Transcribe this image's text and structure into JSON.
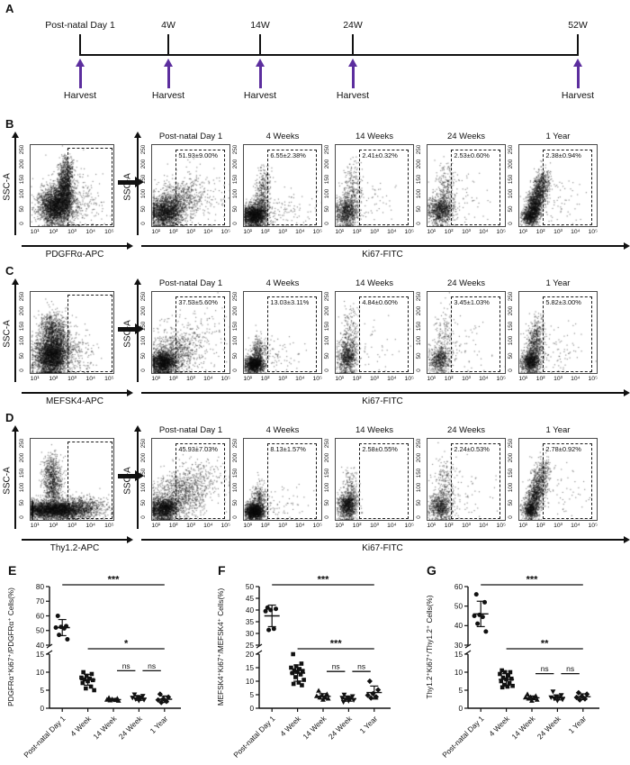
{
  "panelA": {
    "label": "A",
    "arrow_color": "#5c2e9e",
    "entries": [
      {
        "time": "Post-natal Day 1",
        "harvest": "Harvest"
      },
      {
        "time": "4W",
        "harvest": "Harvest"
      },
      {
        "time": "14W",
        "harvest": "Harvest"
      },
      {
        "time": "24W",
        "harvest": "Harvest"
      },
      {
        "time": "52W",
        "harvest": "Harvest"
      }
    ]
  },
  "flow_common": {
    "ylabel": "SSC-A",
    "gated_xlabel": "Ki67-FITC",
    "yticks": [
      "0",
      "50",
      "100",
      "150",
      "200",
      "250"
    ],
    "xticks": [
      "10¹",
      "10²",
      "10³",
      "10⁴",
      "10⁵"
    ]
  },
  "flow_rows": [
    {
      "panel": "B",
      "main_xlabel": "PDGFRα-APC",
      "gated": [
        {
          "title": "Post-natal Day 1",
          "value": "51.93±9.00%"
        },
        {
          "title": "4 Weeks",
          "value": "6.55±2.38%"
        },
        {
          "title": "14 Weeks",
          "value": "2.41±0.32%"
        },
        {
          "title": "24 Weeks",
          "value": "2.53±0.60%"
        },
        {
          "title": "1 Year",
          "value": "2.38±0.94%"
        }
      ]
    },
    {
      "panel": "C",
      "main_xlabel": "MEFSK4-APC",
      "gated": [
        {
          "title": "Post-natal Day 1",
          "value": "37.53±5.60%"
        },
        {
          "title": "4 Weeks",
          "value": "13.03±3.11%"
        },
        {
          "title": "14 Weeks",
          "value": "4.84±0.60%"
        },
        {
          "title": "24 Weeks",
          "value": "3.45±1.03%"
        },
        {
          "title": "1 Year",
          "value": "5.82±3.00%"
        }
      ]
    },
    {
      "panel": "D",
      "main_xlabel": "Thy1.2-APC",
      "gated": [
        {
          "title": "Post-natal Day 1",
          "value": "45.93±7.03%"
        },
        {
          "title": "4 Weeks",
          "value": "8.13±1.57%"
        },
        {
          "title": "14 Weeks",
          "value": "2.58±0.55%"
        },
        {
          "title": "24 Weeks",
          "value": "2.24±0.53%"
        },
        {
          "title": "1 Year",
          "value": "2.78±0.92%"
        }
      ]
    }
  ],
  "chart_data": [
    {
      "panel": "E",
      "type": "scatter",
      "ylabel": "PDGFRα⁺Ki67⁺/PDGFRα⁺ Cells(%)",
      "categories": [
        "Post-natal Day 1",
        "4 Week",
        "14 Week",
        "24 Week",
        "1 Year"
      ],
      "markers": [
        "circle",
        "square",
        "triangle-up",
        "triangle-down",
        "diamond"
      ],
      "axis_top": {
        "min": 40,
        "max": 80,
        "ticks": [
          40,
          50,
          60,
          70,
          80
        ]
      },
      "axis_bottom": {
        "min": 0,
        "max": 15,
        "ticks": [
          0,
          5,
          10,
          15
        ]
      },
      "groups": [
        {
          "label": "Post-natal Day 1",
          "mean": 52,
          "sd": 5.5,
          "values": [
            60,
            53,
            52.5,
            52,
            51.5,
            47,
            44
          ]
        },
        {
          "label": "4 Week",
          "mean": 7.9,
          "sd": 1.5,
          "values": [
            10,
            9.5,
            9,
            8.5,
            8.2,
            8,
            7.8,
            7.5,
            7,
            6,
            5.5,
            5
          ]
        },
        {
          "label": "14 Week",
          "mean": 2.4,
          "sd": 0.3,
          "values": [
            2.9,
            2.7,
            2.5,
            2.4,
            2.3,
            2.2,
            2.1
          ]
        },
        {
          "label": "24 Week",
          "mean": 2.8,
          "sd": 0.6,
          "values": [
            3.8,
            3.4,
            3.1,
            2.9,
            2.7,
            2.5,
            2.3,
            2.1
          ]
        },
        {
          "label": "1 Year",
          "mean": 2.5,
          "sd": 0.9,
          "values": [
            3.9,
            3.1,
            2.6,
            2.3,
            1.9,
            1.6
          ]
        }
      ],
      "significance": [
        {
          "from": 0,
          "to": 4,
          "label": "***",
          "pos": "top"
        },
        {
          "from": 1,
          "to": 4,
          "label": "*",
          "pos": "break"
        },
        {
          "from": 2,
          "to": 3,
          "label": "ns",
          "pos": "value",
          "value": 10.4
        },
        {
          "from": 3,
          "to": 4,
          "label": "ns",
          "pos": "value",
          "value": 10.4
        }
      ]
    },
    {
      "panel": "F",
      "type": "scatter",
      "ylabel": "MEFSK4⁺Ki67⁺/MEFSK4⁺ Cells(%)",
      "categories": [
        "Post-natal Day 1",
        "4 Week",
        "14 Week",
        "24 Week",
        "1 Year"
      ],
      "markers": [
        "circle",
        "square",
        "triangle-up",
        "triangle-down",
        "diamond"
      ],
      "axis_top": {
        "min": 25,
        "max": 50,
        "ticks": [
          25,
          30,
          35,
          40,
          45,
          50
        ]
      },
      "axis_bottom": {
        "min": 0,
        "max": 20,
        "ticks": [
          0,
          5,
          10,
          15,
          20
        ]
      },
      "groups": [
        {
          "label": "Post-natal Day 1",
          "mean": 37.5,
          "sd": 4.6,
          "values": [
            41,
            40.5,
            40,
            39.5,
            32,
            31.5
          ]
        },
        {
          "label": "4 Week",
          "mean": 13,
          "sd": 3,
          "values": [
            20,
            16.5,
            15.5,
            15,
            14.5,
            14,
            13.8,
            13.5,
            13,
            12.5,
            11.5,
            10.5,
            9.5,
            9,
            8.5
          ]
        },
        {
          "label": "14 Week",
          "mean": 4.4,
          "sd": 1,
          "values": [
            6.5,
            5.2,
            4.8,
            4.5,
            4.2,
            4,
            3.6,
            3.2
          ]
        },
        {
          "label": "24 Week",
          "mean": 3.5,
          "sd": 0.9,
          "values": [
            5,
            4.4,
            4,
            3.8,
            3.5,
            3.2,
            3,
            2.7,
            2.3
          ]
        },
        {
          "label": "1 Year",
          "mean": 5.8,
          "sd": 2.4,
          "values": [
            10,
            6.8,
            5.4,
            4.8,
            4.2,
            3.8
          ]
        }
      ],
      "significance": [
        {
          "from": 0,
          "to": 4,
          "label": "***",
          "pos": "top"
        },
        {
          "from": 1,
          "to": 4,
          "label": "***",
          "pos": "break"
        },
        {
          "from": 2,
          "to": 3,
          "label": "ns",
          "pos": "value",
          "value": 13.6
        },
        {
          "from": 3,
          "to": 4,
          "label": "ns",
          "pos": "value",
          "value": 13.6
        }
      ]
    },
    {
      "panel": "G",
      "type": "scatter",
      "ylabel": "Thy1.2⁺Ki67⁺/Thy1.2⁺ Cells(%)",
      "categories": [
        "Post-natal Day 1",
        "4 Week",
        "14 Week",
        "24 Week",
        "1 Year"
      ],
      "markers": [
        "circle",
        "square",
        "triangle-up",
        "triangle-down",
        "diamond"
      ],
      "axis_top": {
        "min": 30,
        "max": 60,
        "ticks": [
          30,
          40,
          50,
          60
        ]
      },
      "axis_bottom": {
        "min": 0,
        "max": 15,
        "ticks": [
          0,
          5,
          10,
          15
        ]
      },
      "groups": [
        {
          "label": "Post-natal Day 1",
          "mean": 46,
          "sd": 6.5,
          "values": [
            56,
            52,
            45.5,
            45,
            44.5,
            41,
            37
          ]
        },
        {
          "label": "4 Week",
          "mean": 8,
          "sd": 1.6,
          "values": [
            10.5,
            10,
            10,
            9.5,
            9,
            8.5,
            8.2,
            8,
            7.5,
            7,
            6.5,
            6.2,
            6,
            5.8
          ]
        },
        {
          "label": "14 Week",
          "mean": 2.9,
          "sd": 0.5,
          "values": [
            3.9,
            3.4,
            3.1,
            3,
            2.9,
            2.7,
            2.4,
            2.1
          ]
        },
        {
          "label": "24 Week",
          "mean": 3,
          "sd": 0.7,
          "values": [
            4.6,
            3.6,
            3.2,
            3,
            2.9,
            2.7,
            2.4,
            2.1
          ]
        },
        {
          "label": "1 Year",
          "mean": 3.2,
          "sd": 0.8,
          "values": [
            4.3,
            3.9,
            3.3,
            3,
            2.6,
            2.3
          ]
        }
      ],
      "significance": [
        {
          "from": 0,
          "to": 4,
          "label": "***",
          "pos": "top"
        },
        {
          "from": 1,
          "to": 4,
          "label": "**",
          "pos": "break"
        },
        {
          "from": 2,
          "to": 3,
          "label": "ns",
          "pos": "value",
          "value": 9.6
        },
        {
          "from": 3,
          "to": 4,
          "label": "ns",
          "pos": "value",
          "value": 9.6
        }
      ]
    }
  ]
}
